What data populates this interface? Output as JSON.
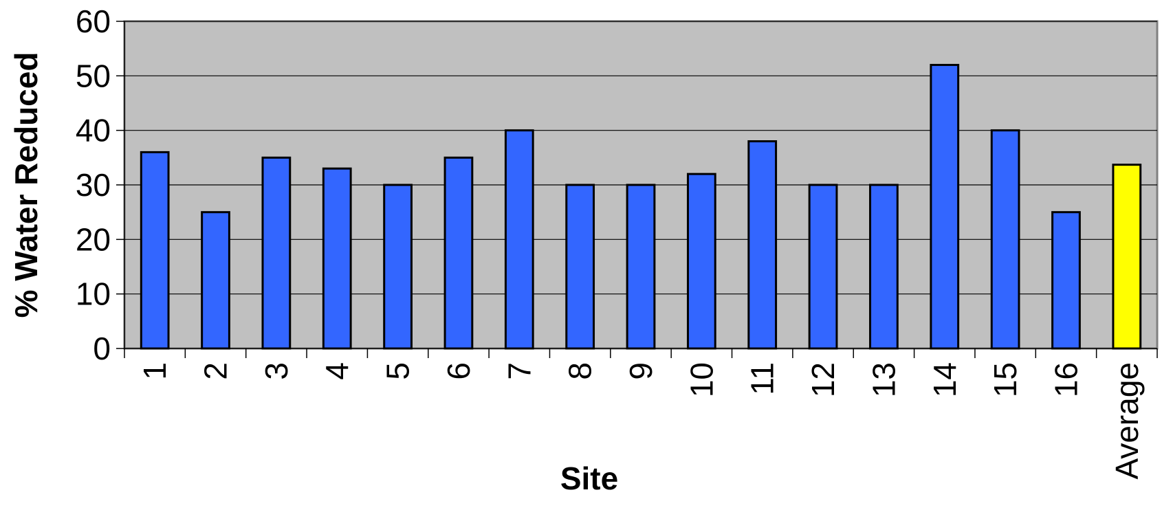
{
  "chart_data": {
    "type": "bar",
    "title": "",
    "xlabel": "Site",
    "ylabel": "% Water Reduced",
    "categories": [
      "1",
      "2",
      "3",
      "4",
      "5",
      "6",
      "7",
      "8",
      "9",
      "10",
      "11",
      "12",
      "13",
      "14",
      "15",
      "16",
      "Average"
    ],
    "values": [
      36,
      25,
      35,
      33,
      30,
      35,
      40,
      30,
      30,
      32,
      38,
      30,
      30,
      52,
      40,
      25,
      33.7
    ],
    "ylim": [
      0,
      60
    ],
    "yticks": [
      0,
      10,
      20,
      30,
      40,
      50,
      60
    ],
    "grid": true,
    "legend": "none",
    "colors": {
      "plot_background": "#c0c0c0",
      "bar": "#3366ff",
      "highlight_bar": "#ffff00",
      "bar_outline": "#000000",
      "gridline": "#000000"
    },
    "highlight_category": "Average"
  }
}
